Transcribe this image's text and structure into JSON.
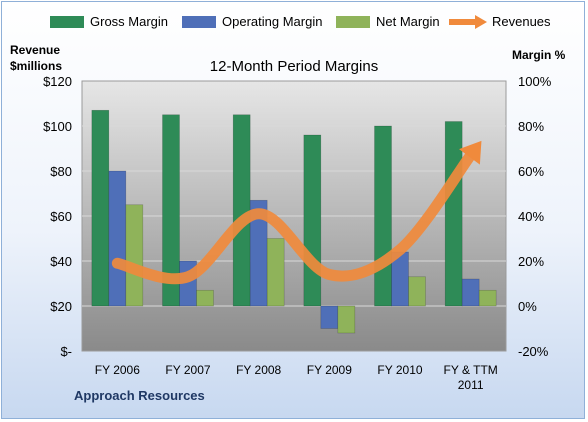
{
  "chart_data": {
    "type": "bar",
    "title": "12-Month Period Margins",
    "categories": [
      "FY 2006",
      "FY 2007",
      "FY 2008",
      "FY 2009",
      "FY 2010",
      "FY & TTM 2011"
    ],
    "series": [
      {
        "name": "Gross Margin",
        "axis": "right",
        "color": "#2e8b57",
        "values": [
          87,
          85,
          85,
          76,
          80,
          82
        ]
      },
      {
        "name": "Operating Margin",
        "axis": "right",
        "color": "#4f6fb8",
        "values": [
          60,
          20,
          47,
          -10,
          24,
          12
        ]
      },
      {
        "name": "Net Margin",
        "axis": "right",
        "color": "#8fb35a",
        "values": [
          45,
          7,
          30,
          -12,
          13,
          7
        ]
      }
    ],
    "line_series": {
      "name": "Revenues",
      "axis": "left",
      "color": "#f08a3c",
      "values": [
        39,
        33,
        61,
        34,
        45,
        87
      ]
    },
    "left_axis": {
      "label_lines": [
        "Revenue",
        "$millions"
      ],
      "ticks": [
        "$120",
        "$100",
        "$80",
        "$60",
        "$40",
        "$20",
        "$-"
      ],
      "ylim": [
        0,
        120
      ]
    },
    "right_axis": {
      "label": "Margin %",
      "ticks": [
        "100%",
        "80%",
        "60%",
        "40%",
        "20%",
        "0%",
        "-20%"
      ],
      "ylim": [
        -20,
        100
      ]
    },
    "grid": true,
    "legend_position": "top",
    "company": "Approach Resources"
  }
}
